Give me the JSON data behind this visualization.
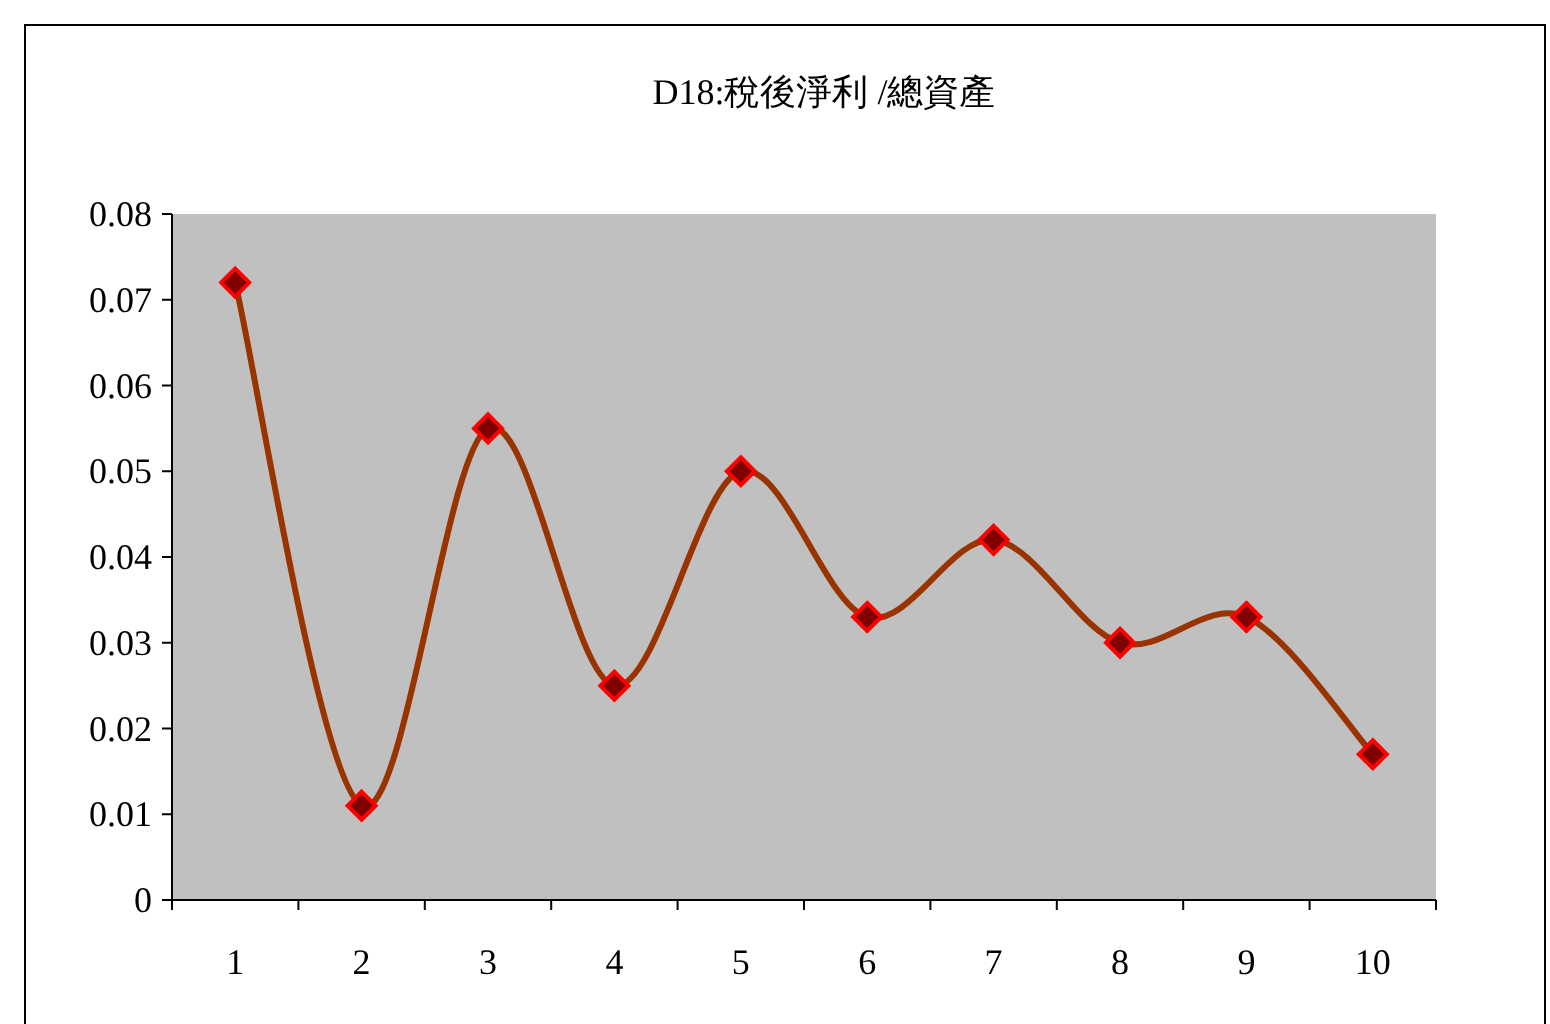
{
  "chart_data": {
    "type": "line",
    "title": "D18:稅後淨利 /總資產",
    "categories": [
      "1",
      "2",
      "3",
      "4",
      "5",
      "6",
      "7",
      "8",
      "9",
      "10"
    ],
    "series": [
      {
        "color": "#993300",
        "values": [
          0.072,
          0.011,
          0.055,
          0.025,
          0.05,
          0.033,
          0.042,
          0.03,
          0.033,
          0.017
        ]
      }
    ],
    "ylim": [
      0,
      0.08
    ],
    "yticks": [
      0,
      0.01,
      0.02,
      0.03,
      0.04,
      0.05,
      0.06,
      0.07,
      0.08
    ],
    "grid": false,
    "marker": "diamond",
    "line_style": "solid"
  }
}
